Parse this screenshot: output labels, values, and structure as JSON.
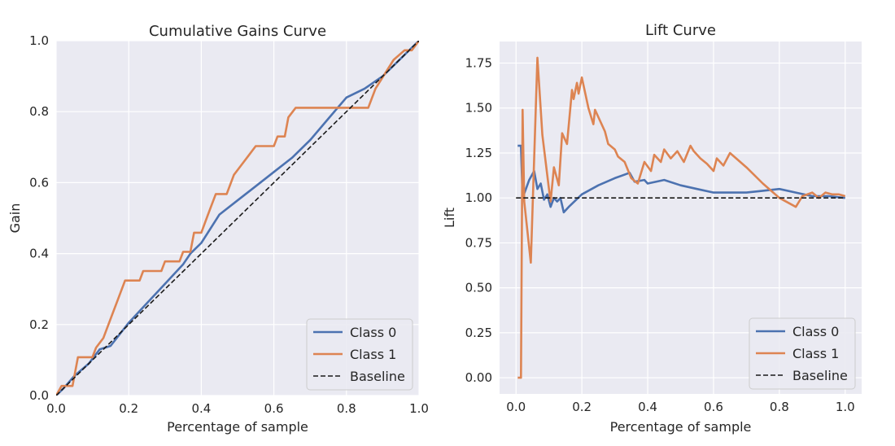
{
  "chart_data": [
    {
      "type": "line",
      "title": "Cumulative Gains Curve",
      "xlabel": "Percentage of sample",
      "ylabel": "Gain",
      "xlim": [
        0,
        1
      ],
      "ylim": [
        0,
        1
      ],
      "xticks": [
        "0.0",
        "0.2",
        "0.4",
        "0.6",
        "0.8",
        "1.0"
      ],
      "yticks": [
        "0.0",
        "0.2",
        "0.4",
        "0.6",
        "0.8",
        "1.0"
      ],
      "grid": true,
      "legend": "bottom-right",
      "series": [
        {
          "name": "Class 0",
          "color": "#4c72b0",
          "style": "solid",
          "points": [
            [
              0,
              0
            ],
            [
              0.02,
              0.02
            ],
            [
              0.05,
              0.055
            ],
            [
              0.09,
              0.09
            ],
            [
              0.12,
              0.13
            ],
            [
              0.15,
              0.14
            ],
            [
              0.2,
              0.205
            ],
            [
              0.25,
              0.26
            ],
            [
              0.3,
              0.315
            ],
            [
              0.35,
              0.37
            ],
            [
              0.37,
              0.4
            ],
            [
              0.4,
              0.43
            ],
            [
              0.45,
              0.51
            ],
            [
              0.5,
              0.55
            ],
            [
              0.55,
              0.59
            ],
            [
              0.6,
              0.63
            ],
            [
              0.65,
              0.67
            ],
            [
              0.7,
              0.72
            ],
            [
              0.75,
              0.78
            ],
            [
              0.8,
              0.84
            ],
            [
              0.85,
              0.865
            ],
            [
              0.9,
              0.9
            ],
            [
              0.95,
              0.95
            ],
            [
              1.0,
              1.0
            ]
          ]
        },
        {
          "name": "Class 1",
          "color": "#dd8452",
          "style": "solid",
          "points": [
            [
              0,
              0
            ],
            [
              0.015,
              0.027
            ],
            [
              0.045,
              0.027
            ],
            [
              0.06,
              0.108
            ],
            [
              0.1,
              0.108
            ],
            [
              0.11,
              0.135
            ],
            [
              0.13,
              0.162
            ],
            [
              0.15,
              0.216
            ],
            [
              0.17,
              0.27
            ],
            [
              0.19,
              0.324
            ],
            [
              0.23,
              0.324
            ],
            [
              0.24,
              0.351
            ],
            [
              0.29,
              0.351
            ],
            [
              0.3,
              0.378
            ],
            [
              0.34,
              0.378
            ],
            [
              0.35,
              0.405
            ],
            [
              0.37,
              0.405
            ],
            [
              0.38,
              0.459
            ],
            [
              0.4,
              0.459
            ],
            [
              0.42,
              0.514
            ],
            [
              0.44,
              0.568
            ],
            [
              0.47,
              0.568
            ],
            [
              0.49,
              0.622
            ],
            [
              0.51,
              0.649
            ],
            [
              0.53,
              0.676
            ],
            [
              0.55,
              0.703
            ],
            [
              0.6,
              0.703
            ],
            [
              0.61,
              0.73
            ],
            [
              0.63,
              0.73
            ],
            [
              0.64,
              0.784
            ],
            [
              0.66,
              0.811
            ],
            [
              0.86,
              0.811
            ],
            [
              0.88,
              0.865
            ],
            [
              0.93,
              0.946
            ],
            [
              0.96,
              0.973
            ],
            [
              0.98,
              0.973
            ],
            [
              1.0,
              1.0
            ]
          ]
        },
        {
          "name": "Baseline",
          "color": "#1a1a1a",
          "style": "dashed",
          "points": [
            [
              0,
              0
            ],
            [
              1,
              1
            ]
          ]
        }
      ]
    },
    {
      "type": "line",
      "title": "Lift Curve",
      "xlabel": "Percentage of sample",
      "ylabel": "Lift",
      "xlim": [
        -0.05,
        1.05
      ],
      "ylim": [
        -0.09,
        1.87
      ],
      "xticks": [
        "0.0",
        "0.2",
        "0.4",
        "0.6",
        "0.8",
        "1.0"
      ],
      "yticks": [
        "0.00",
        "0.25",
        "0.50",
        "0.75",
        "1.00",
        "1.25",
        "1.50",
        "1.75"
      ],
      "grid": true,
      "legend": "bottom-right",
      "series": [
        {
          "name": "Class 0",
          "color": "#4c72b0",
          "style": "solid",
          "points": [
            [
              0.005,
              1.29
            ],
            [
              0.015,
              1.29
            ],
            [
              0.02,
              1.0
            ],
            [
              0.03,
              1.05
            ],
            [
              0.04,
              1.1
            ],
            [
              0.055,
              1.15
            ],
            [
              0.065,
              1.05
            ],
            [
              0.075,
              1.08
            ],
            [
              0.085,
              0.99
            ],
            [
              0.095,
              1.02
            ],
            [
              0.105,
              0.95
            ],
            [
              0.115,
              1.0
            ],
            [
              0.125,
              0.98
            ],
            [
              0.135,
              1.0
            ],
            [
              0.145,
              0.92
            ],
            [
              0.16,
              0.95
            ],
            [
              0.2,
              1.02
            ],
            [
              0.25,
              1.07
            ],
            [
              0.3,
              1.11
            ],
            [
              0.345,
              1.14
            ],
            [
              0.36,
              1.09
            ],
            [
              0.39,
              1.1
            ],
            [
              0.4,
              1.08
            ],
            [
              0.45,
              1.1
            ],
            [
              0.5,
              1.07
            ],
            [
              0.55,
              1.05
            ],
            [
              0.6,
              1.03
            ],
            [
              0.65,
              1.03
            ],
            [
              0.7,
              1.03
            ],
            [
              0.75,
              1.04
            ],
            [
              0.8,
              1.05
            ],
            [
              0.85,
              1.03
            ],
            [
              0.9,
              1.01
            ],
            [
              0.95,
              1.01
            ],
            [
              1.0,
              1.0
            ]
          ]
        },
        {
          "name": "Class 1",
          "color": "#dd8452",
          "style": "solid",
          "points": [
            [
              0.005,
              0.0
            ],
            [
              0.015,
              0.0
            ],
            [
              0.02,
              1.49
            ],
            [
              0.025,
              0.98
            ],
            [
              0.045,
              0.64
            ],
            [
              0.065,
              1.78
            ],
            [
              0.08,
              1.35
            ],
            [
              0.1,
              1.05
            ],
            [
              0.105,
              0.98
            ],
            [
              0.115,
              1.17
            ],
            [
              0.13,
              1.07
            ],
            [
              0.14,
              1.36
            ],
            [
              0.155,
              1.3
            ],
            [
              0.17,
              1.6
            ],
            [
              0.175,
              1.55
            ],
            [
              0.185,
              1.64
            ],
            [
              0.19,
              1.58
            ],
            [
              0.2,
              1.67
            ],
            [
              0.22,
              1.5
            ],
            [
              0.235,
              1.41
            ],
            [
              0.24,
              1.49
            ],
            [
              0.27,
              1.37
            ],
            [
              0.28,
              1.3
            ],
            [
              0.3,
              1.27
            ],
            [
              0.31,
              1.23
            ],
            [
              0.33,
              1.2
            ],
            [
              0.35,
              1.11
            ],
            [
              0.37,
              1.08
            ],
            [
              0.39,
              1.2
            ],
            [
              0.41,
              1.15
            ],
            [
              0.42,
              1.24
            ],
            [
              0.44,
              1.2
            ],
            [
              0.45,
              1.27
            ],
            [
              0.47,
              1.22
            ],
            [
              0.49,
              1.26
            ],
            [
              0.51,
              1.2
            ],
            [
              0.53,
              1.29
            ],
            [
              0.54,
              1.26
            ],
            [
              0.56,
              1.22
            ],
            [
              0.58,
              1.19
            ],
            [
              0.6,
              1.15
            ],
            [
              0.61,
              1.22
            ],
            [
              0.63,
              1.18
            ],
            [
              0.65,
              1.25
            ],
            [
              0.7,
              1.17
            ],
            [
              0.75,
              1.08
            ],
            [
              0.8,
              1.0
            ],
            [
              0.85,
              0.95
            ],
            [
              0.87,
              1.01
            ],
            [
              0.9,
              1.03
            ],
            [
              0.92,
              1.0
            ],
            [
              0.94,
              1.03
            ],
            [
              0.96,
              1.02
            ],
            [
              0.98,
              1.02
            ],
            [
              1.0,
              1.01
            ]
          ]
        },
        {
          "name": "Baseline",
          "color": "#1a1a1a",
          "style": "dashed",
          "points": [
            [
              0,
              1.0
            ],
            [
              1,
              1.0
            ]
          ]
        }
      ]
    }
  ]
}
